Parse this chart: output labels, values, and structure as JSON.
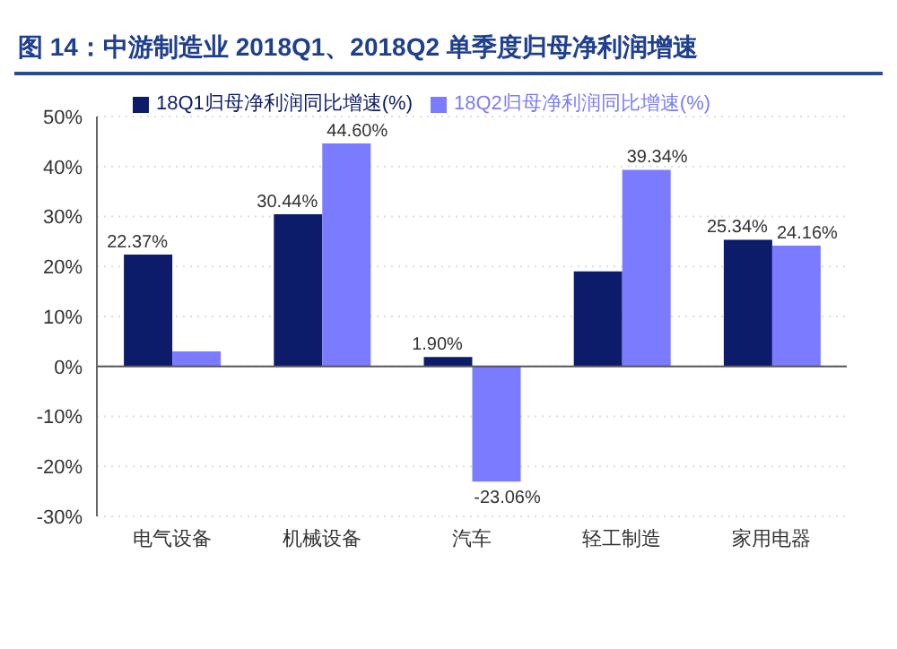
{
  "chart_data": {
    "type": "bar",
    "title": "图 14：中游制造业 2018Q1、2018Q2 单季度归母净利润增速",
    "categories": [
      "电气设备",
      "机械设备",
      "汽车",
      "轻工制造",
      "家用电器"
    ],
    "series": [
      {
        "name": "18Q1归母净利润同比增速(%)",
        "color": "#0d1b6b",
        "values": [
          22.37,
          30.44,
          1.9,
          19,
          25.34
        ],
        "value_labels": [
          "22.37%",
          "30.44%",
          "1.90%",
          null,
          "25.34%"
        ]
      },
      {
        "name": "18Q2归母净利润同比增速(%)",
        "color": "#7b7bff",
        "values": [
          3,
          44.6,
          -23.06,
          39.34,
          24.16
        ],
        "value_labels": [
          null,
          "44.60%",
          "-23.06%",
          "39.34%",
          "24.16%"
        ]
      }
    ],
    "ylim": [
      -30,
      50
    ],
    "yticks": [
      {
        "value": -30,
        "label": "-30%"
      },
      {
        "value": -20,
        "label": "-20%"
      },
      {
        "value": -10,
        "label": "-10%"
      },
      {
        "value": 0,
        "label": "0%"
      },
      {
        "value": 10,
        "label": "10%"
      },
      {
        "value": 20,
        "label": "20%"
      },
      {
        "value": 30,
        "label": "30%"
      },
      {
        "value": 40,
        "label": "40%"
      },
      {
        "value": 50,
        "label": "50%"
      }
    ],
    "legend": "top",
    "grid": "y"
  }
}
